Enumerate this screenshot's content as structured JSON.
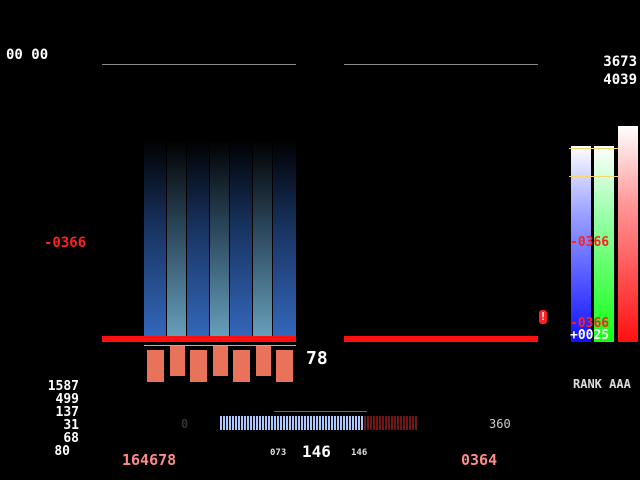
{
  "hud": {
    "timer": "00 00",
    "ex_score": "3673",
    "target_score": "4039",
    "judge_diff_left": "-0366",
    "combo": "78",
    "score": "164678",
    "best_diff": "0364",
    "gauge_num": "0",
    "gauge_max": "360",
    "green_number": "146",
    "hs_low": "073",
    "hs_high": "146",
    "rank_label": "RANK AAA",
    "graph_diff_top": "-0366",
    "graph_diff_bottom": "-0366",
    "graph_plus": "+0025",
    "alert": "!"
  },
  "judge_counts": [
    "1587",
    "499",
    "137",
    "31",
    "68",
    "80"
  ],
  "graph_levels": {
    "you": 0.87,
    "best": 0.87,
    "target": 0.96
  },
  "groove_gauge": 0.73,
  "colors": {
    "accent": "#ff1010",
    "score": "#ff8a8a",
    "key": "#e8735a"
  }
}
